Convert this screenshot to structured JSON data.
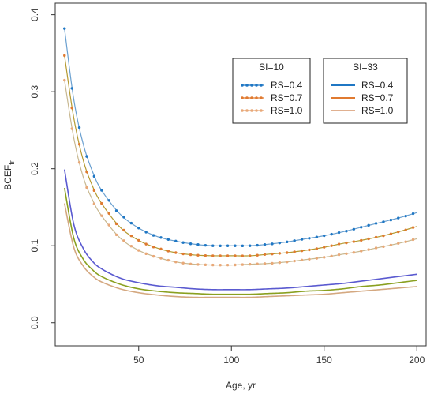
{
  "chart_data": {
    "type": "line",
    "title": "",
    "xlabel": "Age, yr",
    "ylabel": {
      "main": "BCEF",
      "subscript": "fr"
    },
    "xlim": [
      5,
      205
    ],
    "ylim": [
      -0.03,
      0.415
    ],
    "xticks": [
      50,
      100,
      150,
      200
    ],
    "yticks": [
      0.0,
      0.1,
      0.2,
      0.3,
      0.4
    ],
    "xtick_labels": [
      "50",
      "100",
      "150",
      "200"
    ],
    "ytick_labels": [
      "0.0",
      "0.1",
      "0.2",
      "0.3",
      "0.4"
    ],
    "grid": false,
    "legends": [
      {
        "title": "SI=10",
        "placement": "top-center",
        "entries": [
          "RS=0.4",
          "RS=0.7",
          "RS=1.0"
        ],
        "colors": [
          "#1f77c4",
          "#e07a30",
          "#e8a878"
        ],
        "markers": true
      },
      {
        "title": "SI=33",
        "placement": "top-right",
        "entries": [
          "RS=0.4",
          "RS=0.7",
          "RS=1.0"
        ],
        "colors": [
          "#1f77c4",
          "#e07a30",
          "#e0b090"
        ],
        "markers": false
      }
    ],
    "series": [
      {
        "name": "SI=10 RS=0.4",
        "color": "#1f77c4",
        "line_color": "#6aa0d0",
        "markers": true,
        "x": [
          10,
          15,
          20,
          25,
          30,
          40,
          50,
          60,
          70,
          80,
          90,
          100,
          110,
          120,
          130,
          140,
          150,
          160,
          170,
          180,
          190,
          200
        ],
        "y": [
          0.382,
          0.29,
          0.233,
          0.197,
          0.172,
          0.141,
          0.123,
          0.112,
          0.106,
          0.102,
          0.1,
          0.1,
          0.1,
          0.102,
          0.105,
          0.109,
          0.113,
          0.118,
          0.124,
          0.13,
          0.136,
          0.143
        ]
      },
      {
        "name": "SI=10 RS=0.7",
        "color": "#e07a30",
        "line_color": "#b49a30",
        "markers": true,
        "x": [
          10,
          15,
          20,
          25,
          30,
          40,
          50,
          60,
          70,
          80,
          90,
          100,
          110,
          120,
          130,
          140,
          150,
          160,
          170,
          180,
          190,
          200
        ],
        "y": [
          0.347,
          0.266,
          0.212,
          0.178,
          0.155,
          0.124,
          0.107,
          0.097,
          0.091,
          0.088,
          0.087,
          0.087,
          0.087,
          0.089,
          0.091,
          0.094,
          0.098,
          0.103,
          0.107,
          0.112,
          0.118,
          0.125
        ]
      },
      {
        "name": "SI=10 RS=1.0",
        "color": "#e8a878",
        "line_color": "#c8b890",
        "markers": true,
        "x": [
          10,
          15,
          20,
          25,
          30,
          40,
          50,
          60,
          70,
          80,
          90,
          100,
          110,
          120,
          130,
          140,
          150,
          160,
          170,
          180,
          190,
          200
        ],
        "y": [
          0.315,
          0.24,
          0.19,
          0.16,
          0.139,
          0.11,
          0.094,
          0.085,
          0.079,
          0.076,
          0.075,
          0.075,
          0.076,
          0.077,
          0.079,
          0.082,
          0.085,
          0.089,
          0.093,
          0.098,
          0.103,
          0.109
        ]
      },
      {
        "name": "SI=33 RS=0.4",
        "color": "#5a5ad0",
        "markers": false,
        "x": [
          10,
          15,
          20,
          25,
          30,
          40,
          50,
          60,
          70,
          80,
          90,
          100,
          110,
          120,
          130,
          140,
          150,
          160,
          170,
          180,
          190,
          200
        ],
        "y": [
          0.199,
          0.128,
          0.097,
          0.08,
          0.07,
          0.058,
          0.052,
          0.048,
          0.046,
          0.044,
          0.043,
          0.043,
          0.043,
          0.044,
          0.045,
          0.047,
          0.049,
          0.051,
          0.054,
          0.057,
          0.06,
          0.063
        ]
      },
      {
        "name": "SI=33 RS=0.7",
        "color": "#8aa020",
        "markers": false,
        "x": [
          10,
          15,
          20,
          25,
          30,
          40,
          50,
          60,
          70,
          80,
          90,
          100,
          110,
          120,
          130,
          140,
          150,
          160,
          170,
          180,
          190,
          200
        ],
        "y": [
          0.175,
          0.11,
          0.083,
          0.069,
          0.06,
          0.05,
          0.044,
          0.041,
          0.039,
          0.038,
          0.037,
          0.037,
          0.037,
          0.038,
          0.039,
          0.041,
          0.042,
          0.044,
          0.047,
          0.049,
          0.052,
          0.055
        ]
      },
      {
        "name": "SI=33 RS=1.0",
        "color": "#d4a880",
        "markers": false,
        "x": [
          10,
          15,
          20,
          25,
          30,
          40,
          50,
          60,
          70,
          80,
          90,
          100,
          110,
          120,
          130,
          140,
          150,
          160,
          170,
          180,
          190,
          200
        ],
        "y": [
          0.155,
          0.098,
          0.074,
          0.061,
          0.053,
          0.044,
          0.039,
          0.036,
          0.034,
          0.033,
          0.033,
          0.033,
          0.033,
          0.034,
          0.035,
          0.036,
          0.037,
          0.039,
          0.041,
          0.043,
          0.045,
          0.047
        ]
      }
    ]
  }
}
